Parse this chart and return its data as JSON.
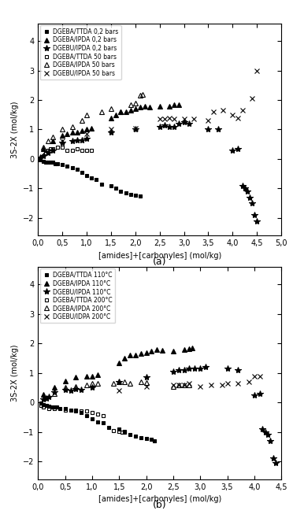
{
  "plot_a": {
    "title": "(a)",
    "xlabel": "[amides]+[carbonyles] (mol/kg)",
    "ylabel": "3S-2X (mol/kg)",
    "xlim": [
      0.0,
      5.0
    ],
    "ylim": [
      -2.6,
      4.6
    ],
    "xticks": [
      0.0,
      0.5,
      1.0,
      1.5,
      2.0,
      2.5,
      3.0,
      3.5,
      4.0,
      4.5,
      5.0
    ],
    "yticks": [
      -2,
      -1,
      0,
      1,
      2,
      3,
      4
    ],
    "series": [
      {
        "label": "DGEBA/TTDA 0,2 bars",
        "marker": "s",
        "filled": true,
        "ms": 3.5,
        "x": [
          0.05,
          0.1,
          0.15,
          0.2,
          0.25,
          0.3,
          0.35,
          0.4,
          0.5,
          0.6,
          0.7,
          0.8,
          0.9,
          1.0,
          1.1,
          1.2,
          1.3,
          1.5,
          1.6,
          1.7,
          1.8,
          1.9,
          2.0,
          2.1
        ],
        "y": [
          -0.02,
          -0.08,
          -0.1,
          -0.12,
          -0.12,
          -0.12,
          -0.15,
          -0.15,
          -0.2,
          -0.25,
          -0.3,
          -0.35,
          -0.45,
          -0.55,
          -0.65,
          -0.7,
          -0.85,
          -0.9,
          -1.0,
          -1.1,
          -1.15,
          -1.2,
          -1.22,
          -1.25
        ]
      },
      {
        "label": "DGEBA/IPDA 0,2 bars",
        "marker": "^",
        "filled": true,
        "ms": 4.5,
        "x": [
          0.1,
          0.3,
          0.5,
          0.6,
          0.7,
          0.8,
          0.9,
          1.0,
          1.1,
          1.5,
          1.6,
          1.7,
          1.8,
          1.9,
          2.0,
          2.1,
          2.2,
          2.3,
          2.5,
          2.7,
          2.8,
          2.9
        ],
        "y": [
          0.35,
          0.6,
          0.8,
          0.85,
          0.9,
          0.9,
          0.95,
          1.0,
          1.05,
          1.4,
          1.5,
          1.6,
          1.6,
          1.65,
          1.7,
          1.75,
          1.8,
          1.75,
          1.8,
          1.8,
          1.85,
          1.85
        ]
      },
      {
        "label": "DGEBU/IPDA 0,2 bars",
        "marker": "*",
        "filled": true,
        "ms": 6,
        "x": [
          0.05,
          0.1,
          0.2,
          0.3,
          0.5,
          0.7,
          0.8,
          0.9,
          1.0,
          1.5,
          2.0,
          2.5,
          2.6,
          2.7,
          2.8,
          2.9,
          3.0,
          3.1,
          3.5,
          3.7,
          4.0,
          4.1,
          4.2,
          4.25,
          4.3,
          4.35,
          4.4,
          4.45,
          4.5
        ],
        "y": [
          0.05,
          0.1,
          0.2,
          0.3,
          0.55,
          0.6,
          0.65,
          0.65,
          0.7,
          0.9,
          1.0,
          1.1,
          1.15,
          1.1,
          1.1,
          1.2,
          1.25,
          1.2,
          1.0,
          1.0,
          0.3,
          0.35,
          -0.9,
          -1.0,
          -1.1,
          -1.3,
          -1.5,
          -1.9,
          -2.1
        ]
      },
      {
        "label": "DGEBA/TTDA 50 bars",
        "marker": "s",
        "filled": false,
        "ms": 3.5,
        "x": [
          0.05,
          0.1,
          0.15,
          0.2,
          0.25,
          0.3,
          0.4,
          0.5,
          0.6,
          0.7,
          0.8,
          0.9,
          1.0,
          1.1
        ],
        "y": [
          0.0,
          0.1,
          0.2,
          0.3,
          0.35,
          0.35,
          0.4,
          0.4,
          0.3,
          0.3,
          0.35,
          0.3,
          0.3,
          0.3
        ]
      },
      {
        "label": "DGEBA/IPDA 50 bars",
        "marker": "^",
        "filled": false,
        "ms": 4.5,
        "x": [
          0.1,
          0.2,
          0.3,
          0.5,
          0.7,
          0.9,
          1.0,
          1.3,
          1.5,
          1.7,
          1.9,
          2.0,
          2.1,
          2.15
        ],
        "y": [
          0.4,
          0.6,
          0.75,
          1.0,
          1.1,
          1.3,
          1.5,
          1.6,
          1.7,
          1.6,
          1.85,
          1.9,
          2.15,
          2.2
        ]
      },
      {
        "label": "DGEBU/IPDA 50 bars",
        "marker": "x",
        "filled": false,
        "ms": 5,
        "x": [
          0.5,
          1.0,
          1.5,
          2.0,
          2.5,
          2.6,
          2.7,
          2.8,
          3.0,
          3.2,
          3.5,
          3.6,
          3.8,
          4.0,
          4.1,
          4.2,
          4.4,
          4.5
        ],
        "y": [
          0.6,
          0.85,
          1.0,
          1.05,
          1.35,
          1.35,
          1.4,
          1.35,
          1.35,
          1.35,
          1.3,
          1.6,
          1.65,
          1.5,
          1.4,
          1.65,
          2.05,
          3.0
        ]
      }
    ]
  },
  "plot_b": {
    "title": "(b)",
    "xlabel": "[amides]+[carbonyles] (mol/kg)",
    "ylabel": "3S-2X (mol/kg)",
    "xlim": [
      0.0,
      4.5
    ],
    "ylim": [
      -2.6,
      4.6
    ],
    "xticks": [
      0.0,
      0.5,
      1.0,
      1.5,
      2.0,
      2.5,
      3.0,
      3.5,
      4.0,
      4.5
    ],
    "yticks": [
      -2,
      -1,
      0,
      1,
      2,
      3,
      4
    ],
    "series": [
      {
        "label": "DGEBA/TTDA 110°C",
        "marker": "s",
        "filled": true,
        "ms": 3.5,
        "x": [
          0.05,
          0.1,
          0.15,
          0.2,
          0.25,
          0.3,
          0.35,
          0.4,
          0.5,
          0.6,
          0.7,
          0.8,
          0.9,
          1.0,
          1.1,
          1.2,
          1.3,
          1.5,
          1.6,
          1.7,
          1.8,
          1.9,
          2.0,
          2.1,
          2.15
        ],
        "y": [
          -0.02,
          -0.08,
          -0.1,
          -0.12,
          -0.15,
          -0.15,
          -0.15,
          -0.2,
          -0.2,
          -0.25,
          -0.3,
          -0.35,
          -0.45,
          -0.55,
          -0.65,
          -0.7,
          -0.85,
          -0.9,
          -1.0,
          -1.1,
          -1.15,
          -1.2,
          -1.22,
          -1.25,
          -1.3
        ]
      },
      {
        "label": "DGEBA/IPDA 110°C",
        "marker": "^",
        "filled": true,
        "ms": 4.5,
        "x": [
          0.1,
          0.3,
          0.5,
          0.7,
          0.9,
          1.0,
          1.1,
          1.5,
          1.6,
          1.7,
          1.8,
          1.9,
          2.0,
          2.1,
          2.2,
          2.3,
          2.5,
          2.7,
          2.8,
          2.85
        ],
        "y": [
          0.28,
          0.5,
          0.72,
          0.85,
          0.88,
          0.9,
          0.95,
          1.35,
          1.5,
          1.6,
          1.62,
          1.65,
          1.7,
          1.75,
          1.8,
          1.78,
          1.75,
          1.8,
          1.82,
          1.85
        ]
      },
      {
        "label": "DGEBU/IPDA 110°C",
        "marker": "*",
        "filled": true,
        "ms": 6,
        "x": [
          0.1,
          0.15,
          0.2,
          0.3,
          0.5,
          0.6,
          0.7,
          0.8,
          1.0,
          1.5,
          2.0,
          2.5,
          2.6,
          2.7,
          2.8,
          2.9,
          3.0,
          3.1,
          3.5,
          3.7,
          4.0,
          4.1,
          4.15,
          4.2,
          4.25,
          4.3,
          4.35,
          4.4
        ],
        "y": [
          0.1,
          0.15,
          0.2,
          0.35,
          0.42,
          0.4,
          0.45,
          0.42,
          0.5,
          0.7,
          0.85,
          1.05,
          1.1,
          1.1,
          1.15,
          1.15,
          1.15,
          1.2,
          1.15,
          1.1,
          0.25,
          0.3,
          -0.9,
          -1.0,
          -1.1,
          -1.3,
          -1.9,
          -2.05
        ]
      },
      {
        "label": "DGEBA/TTDA 200°C",
        "marker": "s",
        "filled": false,
        "ms": 3.5,
        "x": [
          0.05,
          0.1,
          0.2,
          0.3,
          0.5,
          0.7,
          0.8,
          0.9,
          1.0,
          1.1,
          1.2,
          1.4,
          1.5,
          1.55,
          1.6
        ],
        "y": [
          -0.1,
          -0.15,
          -0.2,
          -0.2,
          -0.25,
          -0.25,
          -0.3,
          -0.3,
          -0.35,
          -0.4,
          -0.45,
          -0.95,
          -0.98,
          -1.0,
          -0.98
        ]
      },
      {
        "label": "DGEBA/IPDA 200°C",
        "marker": "^",
        "filled": false,
        "ms": 4.5,
        "x": [
          0.3,
          0.5,
          0.7,
          0.9,
          1.0,
          1.1,
          1.4,
          1.5,
          1.6,
          1.7,
          1.9,
          2.0,
          2.5,
          2.6,
          2.7,
          2.8
        ],
        "y": [
          0.3,
          0.5,
          0.55,
          0.6,
          0.65,
          0.65,
          0.65,
          0.7,
          0.7,
          0.65,
          0.7,
          0.68,
          0.55,
          0.58,
          0.6,
          0.6
        ]
      },
      {
        "label": "DGEBU/IDPA 200°C",
        "marker": "x",
        "filled": false,
        "ms": 5,
        "x": [
          1.5,
          2.0,
          2.5,
          2.6,
          2.7,
          2.8,
          3.0,
          3.2,
          3.4,
          3.5,
          3.7,
          3.9,
          4.0,
          4.1
        ],
        "y": [
          0.4,
          0.55,
          0.6,
          0.6,
          0.6,
          0.65,
          0.55,
          0.6,
          0.6,
          0.65,
          0.65,
          0.7,
          0.9,
          0.9
        ]
      }
    ]
  },
  "fig_width": 3.72,
  "fig_height": 6.58,
  "dpi": 100
}
